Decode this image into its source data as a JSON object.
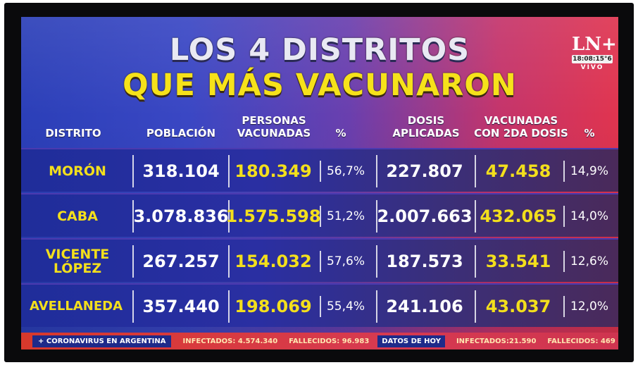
{
  "title": {
    "line1": "LOS 4 DISTRITOS",
    "line2": "QUE MÁS VACUNARON"
  },
  "logo": {
    "mark": "LN+",
    "time": "18:08:15°6",
    "live": "VIVO"
  },
  "headers": {
    "distrito": "DISTRITO",
    "poblacion": "POBLACIÓN",
    "personas_vacunadas": "PERSONAS VACUNADAS",
    "pct1": "%",
    "dosis_aplicadas": "DOSIS APLICADAS",
    "vacunadas_2da": "VACUNADAS CON 2DA DOSIS",
    "pct2": "%"
  },
  "rows": [
    {
      "distrito": "MORÓN",
      "poblacion": "318.104",
      "vacunadas": "180.349",
      "pct1": "56,7%",
      "dosis": "227.807",
      "segunda": "47.458",
      "pct2": "14,9%"
    },
    {
      "distrito": "CABA",
      "poblacion": "3.078.836",
      "vacunadas": "1.575.598",
      "pct1": "51,2%",
      "dosis": "2.007.663",
      "segunda": "432.065",
      "pct2": "14,0%"
    },
    {
      "distrito": "VICENTE LÓPEZ",
      "poblacion": "267.257",
      "vacunadas": "154.032",
      "pct1": "57,6%",
      "dosis": "187.573",
      "segunda": "33.541",
      "pct2": "12,6%"
    },
    {
      "distrito": "AVELLANEDA",
      "poblacion": "357.440",
      "vacunadas": "198.069",
      "pct1": "55,4%",
      "dosis": "241.106",
      "segunda": "43.037",
      "pct2": "12,0%"
    }
  ],
  "ticker": {
    "tag": "+ CORONAVIRUS EN ARGENTINA",
    "infectados": "INFECTADOS: 4.574.340",
    "fallecidos": "FALLECIDOS: 96.983",
    "hoy": "DATOS DE HOY",
    "infectados_hoy": "INFECTADOS:21.590",
    "fallecidos_hoy": "FALLECIDOS: 469"
  }
}
